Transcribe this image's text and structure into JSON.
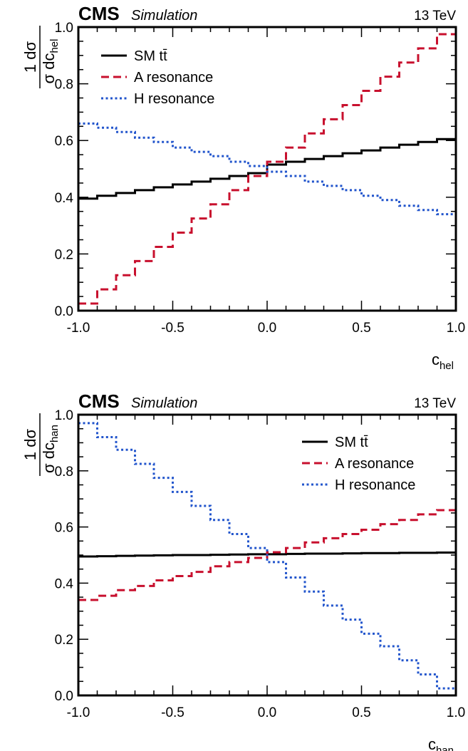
{
  "chart_data": [
    {
      "type": "line",
      "style": "step histogram",
      "experiment": "CMS",
      "label": "Simulation",
      "energy": "13 TeV",
      "xlabel": "c",
      "xlabel_sub": "hel",
      "ylabel_num": "1  dσ",
      "ylabel_den_a": "σ dc",
      "ylabel_den_sub": "hel",
      "xlim": [
        -1.0,
        1.0
      ],
      "ylim": [
        0.0,
        1.0
      ],
      "xticks": [
        "-1.0",
        "-0.5",
        "0.0",
        "0.5",
        "1.0"
      ],
      "yticks": [
        "0.0",
        "0.2",
        "0.4",
        "0.6",
        "0.8",
        "1.0"
      ],
      "legend_position": "top-left",
      "bin_edges": [
        -1.0,
        -0.9,
        -0.8,
        -0.7,
        -0.6,
        -0.5,
        -0.4,
        -0.3,
        -0.2,
        -0.1,
        0.0,
        0.1,
        0.2,
        0.3,
        0.4,
        0.5,
        0.6,
        0.7,
        0.8,
        0.9,
        1.0
      ],
      "series": [
        {
          "name": "SM tt̄",
          "color": "#000000",
          "dash": "solid",
          "values": [
            0.395,
            0.405,
            0.415,
            0.425,
            0.435,
            0.445,
            0.455,
            0.465,
            0.475,
            0.485,
            0.515,
            0.525,
            0.535,
            0.545,
            0.555,
            0.565,
            0.575,
            0.585,
            0.595,
            0.605
          ]
        },
        {
          "name": "A resonance",
          "color": "#c8102e",
          "dash": "dashed",
          "values": [
            0.025,
            0.075,
            0.125,
            0.175,
            0.225,
            0.275,
            0.325,
            0.375,
            0.425,
            0.475,
            0.525,
            0.575,
            0.625,
            0.675,
            0.725,
            0.775,
            0.825,
            0.875,
            0.925,
            0.975
          ]
        },
        {
          "name": "H resonance",
          "color": "#2255cc",
          "dash": "dotted",
          "values": [
            0.66,
            0.645,
            0.63,
            0.61,
            0.595,
            0.575,
            0.56,
            0.545,
            0.525,
            0.51,
            0.49,
            0.475,
            0.455,
            0.44,
            0.425,
            0.405,
            0.39,
            0.37,
            0.355,
            0.34
          ]
        }
      ]
    },
    {
      "type": "line",
      "style": "step histogram",
      "experiment": "CMS",
      "label": "Simulation",
      "energy": "13 TeV",
      "xlabel": "c",
      "xlabel_sub": "han",
      "ylabel_num": "1  dσ",
      "ylabel_den_a": "σ dc",
      "ylabel_den_sub": "han",
      "xlim": [
        -1.0,
        1.0
      ],
      "ylim": [
        0.0,
        1.0
      ],
      "xticks": [
        "-1.0",
        "-0.5",
        "0.0",
        "0.5",
        "1.0"
      ],
      "yticks": [
        "0.0",
        "0.2",
        "0.4",
        "0.6",
        "0.8",
        "1.0"
      ],
      "legend_position": "top-right",
      "bin_edges": [
        -1.0,
        -0.9,
        -0.8,
        -0.7,
        -0.6,
        -0.5,
        -0.4,
        -0.3,
        -0.2,
        -0.1,
        0.0,
        0.1,
        0.2,
        0.3,
        0.4,
        0.5,
        0.6,
        0.7,
        0.8,
        0.9,
        1.0
      ],
      "series": [
        {
          "name": "SM tt̄",
          "color": "#000000",
          "dash": "solid",
          "values": [
            0.495,
            0.496,
            0.497,
            0.498,
            0.499,
            0.5,
            0.5,
            0.501,
            0.502,
            0.503,
            0.503,
            0.504,
            0.505,
            0.505,
            0.506,
            0.507,
            0.507,
            0.508,
            0.508,
            0.509
          ]
        },
        {
          "name": "A resonance",
          "color": "#c8102e",
          "dash": "dashed",
          "values": [
            0.34,
            0.355,
            0.375,
            0.39,
            0.41,
            0.425,
            0.44,
            0.46,
            0.475,
            0.49,
            0.51,
            0.525,
            0.545,
            0.56,
            0.575,
            0.59,
            0.61,
            0.625,
            0.645,
            0.66
          ]
        },
        {
          "name": "H resonance",
          "color": "#2255cc",
          "dash": "dotted",
          "values": [
            0.97,
            0.92,
            0.875,
            0.825,
            0.775,
            0.725,
            0.675,
            0.625,
            0.575,
            0.525,
            0.475,
            0.42,
            0.37,
            0.32,
            0.27,
            0.22,
            0.175,
            0.125,
            0.075,
            0.025
          ]
        }
      ]
    }
  ]
}
